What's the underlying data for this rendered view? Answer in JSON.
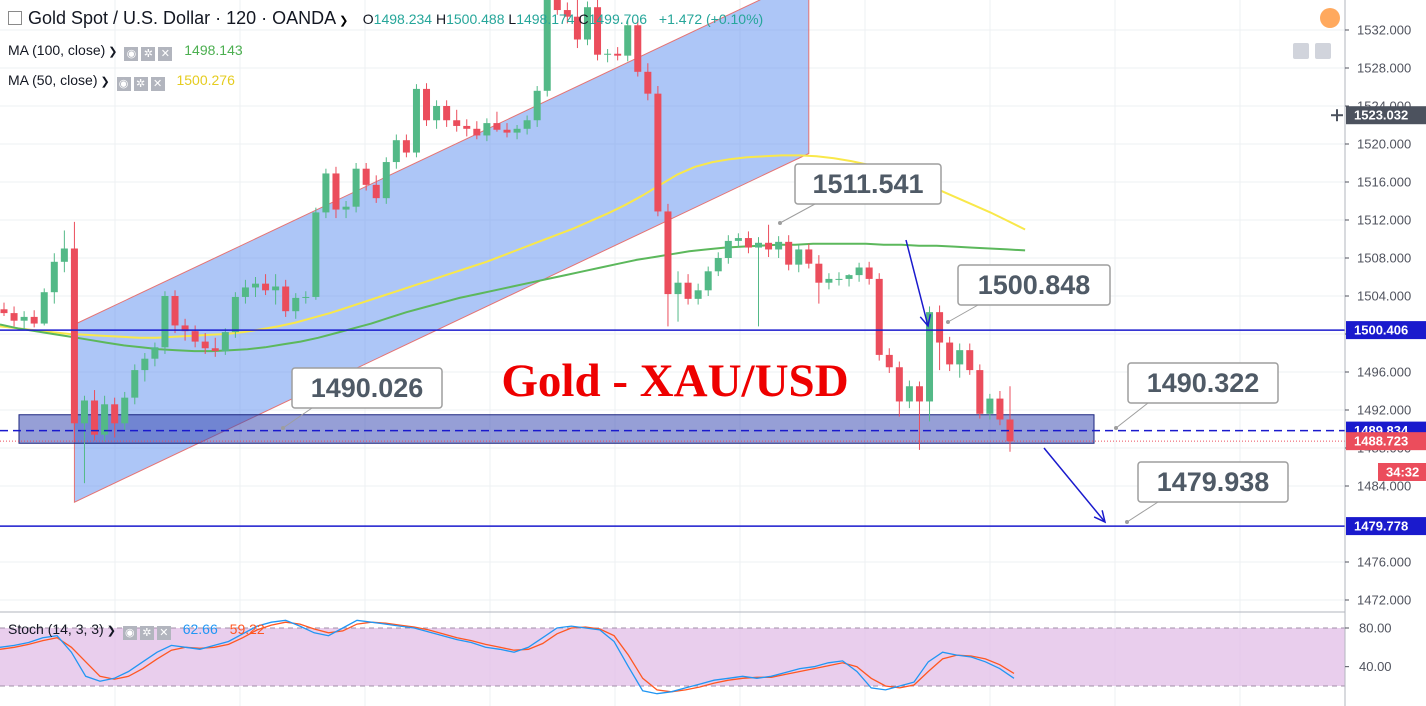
{
  "header": {
    "symbol": "Gold Spot / U.S. Dollar · 120 · OANDA",
    "o_label": "O",
    "o_value": "1498.234",
    "h_label": "H",
    "h_value": "1500.488",
    "l_label": "L",
    "l_value": "1498.174",
    "c_label": "C",
    "c_value": "1499.706",
    "change": "+1.472 (+0.10%)"
  },
  "studies": {
    "ma100": {
      "label": "MA (100, close)",
      "value": "1498.143",
      "color": "#4caf50"
    },
    "ma50": {
      "label": "MA (50, close)",
      "value": "1500.276",
      "color": "#ffeb3b"
    },
    "stoch": {
      "label": "Stoch (14, 3, 3)",
      "k_value": "62.66",
      "d_value": "59.22",
      "k_color": "#2196f3",
      "d_color": "#ff5722"
    }
  },
  "colors": {
    "up": "#53b987",
    "down": "#eb4d5c",
    "channel": "#5b8def",
    "level": "#1a1acd",
    "zone": "#3f51b5",
    "title": "#ee0000"
  },
  "chart_data": {
    "type": "candlestick",
    "title": "Gold - XAU/USD",
    "ylim": [
      1470.0,
      1536.0
    ],
    "y_ticks": [
      "1532.000",
      "1528.000",
      "1524.000",
      "1520.000",
      "1516.000",
      "1512.000",
      "1508.000",
      "1504.000",
      "1500.000",
      "1496.000",
      "1492.000",
      "1488.000",
      "1484.000",
      "1476.000",
      "1472.000"
    ],
    "price_tags": [
      {
        "text": "1523.032",
        "price": 1523.03,
        "kind": "crosshair"
      },
      {
        "text": "1500.406",
        "price": 1500.41,
        "kind": "level"
      },
      {
        "text": "1489.834",
        "price": 1489.83,
        "kind": "level"
      },
      {
        "text": "1488.723",
        "price": 1488.72,
        "kind": "last"
      },
      {
        "text": "34:32",
        "kind": "timer"
      },
      {
        "text": "1479.778",
        "price": 1479.78,
        "kind": "level"
      }
    ],
    "callouts": [
      "1511.541",
      "1500.848",
      "1490.026",
      "1490.322",
      "1479.938"
    ],
    "horizontal_levels": [
      1500.41,
      1479.78
    ],
    "zone": {
      "low": 1488.5,
      "high": 1491.5,
      "dashed": 1489.83
    },
    "candles": [
      {
        "o": 1502.6,
        "h": 1503.3,
        "l": 1501.9,
        "c": 1502.2
      },
      {
        "o": 1502.2,
        "h": 1502.9,
        "l": 1500.8,
        "c": 1501.4
      },
      {
        "o": 1501.4,
        "h": 1502.4,
        "l": 1500.4,
        "c": 1501.8
      },
      {
        "o": 1501.8,
        "h": 1502.5,
        "l": 1500.7,
        "c": 1501.1
      },
      {
        "o": 1501.1,
        "h": 1504.8,
        "l": 1500.9,
        "c": 1504.4
      },
      {
        "o": 1504.4,
        "h": 1508.5,
        "l": 1503.2,
        "c": 1507.6
      },
      {
        "o": 1507.6,
        "h": 1510.9,
        "l": 1506.5,
        "c": 1509.0
      },
      {
        "o": 1509.0,
        "h": 1511.8,
        "l": 1488.6,
        "c": 1490.6
      },
      {
        "o": 1490.6,
        "h": 1493.5,
        "l": 1484.3,
        "c": 1493.0
      },
      {
        "o": 1493.0,
        "h": 1494.1,
        "l": 1488.8,
        "c": 1489.4
      },
      {
        "o": 1489.4,
        "h": 1493.5,
        "l": 1488.7,
        "c": 1492.6
      },
      {
        "o": 1492.6,
        "h": 1493.3,
        "l": 1489.1,
        "c": 1490.6
      },
      {
        "o": 1490.6,
        "h": 1493.9,
        "l": 1489.9,
        "c": 1493.3
      },
      {
        "o": 1493.3,
        "h": 1496.8,
        "l": 1492.6,
        "c": 1496.2
      },
      {
        "o": 1496.2,
        "h": 1498.0,
        "l": 1495.0,
        "c": 1497.4
      },
      {
        "o": 1497.4,
        "h": 1499.1,
        "l": 1496.6,
        "c": 1498.6
      },
      {
        "o": 1498.6,
        "h": 1504.5,
        "l": 1497.9,
        "c": 1504.0
      },
      {
        "o": 1504.0,
        "h": 1504.6,
        "l": 1500.1,
        "c": 1500.9
      },
      {
        "o": 1500.9,
        "h": 1501.6,
        "l": 1499.3,
        "c": 1500.3
      },
      {
        "o": 1500.3,
        "h": 1500.9,
        "l": 1498.6,
        "c": 1499.2
      },
      {
        "o": 1499.2,
        "h": 1500.1,
        "l": 1497.9,
        "c": 1498.5
      },
      {
        "o": 1498.5,
        "h": 1499.6,
        "l": 1497.6,
        "c": 1498.2
      },
      {
        "o": 1498.2,
        "h": 1500.6,
        "l": 1497.8,
        "c": 1500.2
      },
      {
        "o": 1500.2,
        "h": 1504.4,
        "l": 1499.6,
        "c": 1503.9
      },
      {
        "o": 1503.9,
        "h": 1505.7,
        "l": 1503.2,
        "c": 1504.9
      },
      {
        "o": 1504.9,
        "h": 1506.0,
        "l": 1503.9,
        "c": 1505.3
      },
      {
        "o": 1505.3,
        "h": 1506.3,
        "l": 1504.1,
        "c": 1504.6
      },
      {
        "o": 1504.6,
        "h": 1506.3,
        "l": 1503.1,
        "c": 1505.0
      },
      {
        "o": 1505.0,
        "h": 1505.7,
        "l": 1501.8,
        "c": 1502.4
      },
      {
        "o": 1502.4,
        "h": 1504.3,
        "l": 1501.6,
        "c": 1503.8
      },
      {
        "o": 1503.8,
        "h": 1504.5,
        "l": 1503.2,
        "c": 1503.9
      },
      {
        "o": 1503.9,
        "h": 1513.3,
        "l": 1503.6,
        "c": 1512.8
      },
      {
        "o": 1512.8,
        "h": 1517.4,
        "l": 1512.2,
        "c": 1516.9
      },
      {
        "o": 1516.9,
        "h": 1517.6,
        "l": 1512.2,
        "c": 1513.1
      },
      {
        "o": 1513.1,
        "h": 1514.0,
        "l": 1512.2,
        "c": 1513.4
      },
      {
        "o": 1513.4,
        "h": 1518.0,
        "l": 1512.8,
        "c": 1517.4
      },
      {
        "o": 1517.4,
        "h": 1518.0,
        "l": 1515.1,
        "c": 1515.7
      },
      {
        "o": 1515.7,
        "h": 1516.7,
        "l": 1513.8,
        "c": 1514.3
      },
      {
        "o": 1514.3,
        "h": 1518.6,
        "l": 1513.7,
        "c": 1518.1
      },
      {
        "o": 1518.1,
        "h": 1521.0,
        "l": 1517.4,
        "c": 1520.4
      },
      {
        "o": 1520.4,
        "h": 1521.0,
        "l": 1518.6,
        "c": 1519.1
      },
      {
        "o": 1519.1,
        "h": 1526.3,
        "l": 1518.6,
        "c": 1525.8
      },
      {
        "o": 1525.8,
        "h": 1526.4,
        "l": 1521.9,
        "c": 1522.5
      },
      {
        "o": 1522.5,
        "h": 1524.6,
        "l": 1521.6,
        "c": 1524.0
      },
      {
        "o": 1524.0,
        "h": 1524.6,
        "l": 1521.8,
        "c": 1522.5
      },
      {
        "o": 1522.5,
        "h": 1523.6,
        "l": 1521.3,
        "c": 1521.9
      },
      {
        "o": 1521.9,
        "h": 1522.6,
        "l": 1520.8,
        "c": 1521.6
      },
      {
        "o": 1521.6,
        "h": 1522.4,
        "l": 1520.5,
        "c": 1520.9
      },
      {
        "o": 1520.9,
        "h": 1522.7,
        "l": 1520.3,
        "c": 1522.2
      },
      {
        "o": 1522.2,
        "h": 1523.4,
        "l": 1521.3,
        "c": 1521.5
      },
      {
        "o": 1521.5,
        "h": 1522.2,
        "l": 1520.7,
        "c": 1521.2
      },
      {
        "o": 1521.2,
        "h": 1522.0,
        "l": 1520.5,
        "c": 1521.6
      },
      {
        "o": 1521.6,
        "h": 1523.0,
        "l": 1521.0,
        "c": 1522.5
      },
      {
        "o": 1522.5,
        "h": 1526.1,
        "l": 1521.8,
        "c": 1525.6
      },
      {
        "o": 1525.6,
        "h": 1536.0,
        "l": 1525.0,
        "c": 1535.4
      },
      {
        "o": 1535.4,
        "h": 1536.0,
        "l": 1533.6,
        "c": 1534.1
      },
      {
        "o": 1534.1,
        "h": 1534.9,
        "l": 1532.7,
        "c": 1533.4
      },
      {
        "o": 1533.4,
        "h": 1535.6,
        "l": 1530.1,
        "c": 1531.0
      },
      {
        "o": 1531.0,
        "h": 1535.0,
        "l": 1530.4,
        "c": 1534.4
      },
      {
        "o": 1534.4,
        "h": 1535.3,
        "l": 1528.8,
        "c": 1529.4
      },
      {
        "o": 1529.4,
        "h": 1530.0,
        "l": 1528.6,
        "c": 1529.5
      },
      {
        "o": 1529.5,
        "h": 1530.2,
        "l": 1528.8,
        "c": 1529.3
      },
      {
        "o": 1529.3,
        "h": 1533.1,
        "l": 1528.7,
        "c": 1532.5
      },
      {
        "o": 1532.5,
        "h": 1533.1,
        "l": 1527.1,
        "c": 1527.6
      },
      {
        "o": 1527.6,
        "h": 1528.5,
        "l": 1524.6,
        "c": 1525.3
      },
      {
        "o": 1525.3,
        "h": 1526.1,
        "l": 1512.4,
        "c": 1512.9
      },
      {
        "o": 1512.9,
        "h": 1513.7,
        "l": 1500.8,
        "c": 1504.2
      },
      {
        "o": 1504.2,
        "h": 1506.6,
        "l": 1501.3,
        "c": 1505.4
      },
      {
        "o": 1505.4,
        "h": 1506.3,
        "l": 1503.1,
        "c": 1503.7
      },
      {
        "o": 1503.7,
        "h": 1505.3,
        "l": 1503.1,
        "c": 1504.6
      },
      {
        "o": 1504.6,
        "h": 1507.1,
        "l": 1504.0,
        "c": 1506.6
      },
      {
        "o": 1506.6,
        "h": 1508.6,
        "l": 1506.1,
        "c": 1508.0
      },
      {
        "o": 1508.0,
        "h": 1510.4,
        "l": 1507.4,
        "c": 1509.8
      },
      {
        "o": 1509.8,
        "h": 1510.6,
        "l": 1509.1,
        "c": 1510.1
      },
      {
        "o": 1510.1,
        "h": 1510.8,
        "l": 1508.5,
        "c": 1509.1
      },
      {
        "o": 1509.1,
        "h": 1510.2,
        "l": 1500.8,
        "c": 1509.6
      },
      {
        "o": 1509.6,
        "h": 1511.5,
        "l": 1508.1,
        "c": 1508.9
      },
      {
        "o": 1508.9,
        "h": 1510.3,
        "l": 1508.0,
        "c": 1509.7
      },
      {
        "o": 1509.7,
        "h": 1510.4,
        "l": 1506.7,
        "c": 1507.3
      },
      {
        "o": 1507.3,
        "h": 1509.4,
        "l": 1506.5,
        "c": 1508.9
      },
      {
        "o": 1508.9,
        "h": 1509.5,
        "l": 1506.9,
        "c": 1507.4
      },
      {
        "o": 1507.4,
        "h": 1508.3,
        "l": 1503.2,
        "c": 1505.4
      },
      {
        "o": 1505.4,
        "h": 1506.4,
        "l": 1504.7,
        "c": 1505.8
      },
      {
        "o": 1505.8,
        "h": 1506.5,
        "l": 1505.1,
        "c": 1505.8
      },
      {
        "o": 1505.8,
        "h": 1506.3,
        "l": 1505.0,
        "c": 1506.2
      },
      {
        "o": 1506.2,
        "h": 1507.5,
        "l": 1505.5,
        "c": 1507.0
      },
      {
        "o": 1507.0,
        "h": 1507.6,
        "l": 1505.2,
        "c": 1505.8
      },
      {
        "o": 1505.8,
        "h": 1506.4,
        "l": 1497.2,
        "c": 1497.8
      },
      {
        "o": 1497.8,
        "h": 1498.5,
        "l": 1495.9,
        "c": 1496.5
      },
      {
        "o": 1496.5,
        "h": 1497.1,
        "l": 1491.3,
        "c": 1492.9
      },
      {
        "o": 1492.9,
        "h": 1495.1,
        "l": 1492.2,
        "c": 1494.5
      },
      {
        "o": 1494.5,
        "h": 1495.0,
        "l": 1487.8,
        "c": 1492.9
      },
      {
        "o": 1492.9,
        "h": 1502.9,
        "l": 1490.8,
        "c": 1502.3
      },
      {
        "o": 1502.3,
        "h": 1503.0,
        "l": 1496.2,
        "c": 1499.1
      },
      {
        "o": 1499.1,
        "h": 1499.7,
        "l": 1496.1,
        "c": 1496.8
      },
      {
        "o": 1496.8,
        "h": 1499.0,
        "l": 1495.4,
        "c": 1498.3
      },
      {
        "o": 1498.3,
        "h": 1499.0,
        "l": 1495.7,
        "c": 1496.2
      },
      {
        "o": 1496.2,
        "h": 1496.8,
        "l": 1491.1,
        "c": 1491.6
      },
      {
        "o": 1491.6,
        "h": 1493.7,
        "l": 1491.0,
        "c": 1493.2
      },
      {
        "o": 1493.2,
        "h": 1494.0,
        "l": 1490.4,
        "c": 1491.0
      },
      {
        "o": 1491.0,
        "h": 1494.5,
        "l": 1487.6,
        "c": 1488.7
      }
    ],
    "ma50": [
      1500.8,
      1500.6,
      1500.4,
      1500.2,
      1500.0,
      1499.9,
      1499.8,
      1499.7,
      1499.6,
      1499.6,
      1499.7,
      1499.8,
      1499.9,
      1500.0,
      1500.2,
      1500.5,
      1500.8,
      1501.2,
      1501.7,
      1502.2,
      1502.8,
      1503.4,
      1504.0,
      1504.6,
      1505.2,
      1505.8,
      1506.4,
      1507.0,
      1507.6,
      1508.3,
      1509.0,
      1509.7,
      1510.4,
      1511.1,
      1511.9,
      1512.7,
      1513.6,
      1514.6,
      1515.7,
      1516.8,
      1517.6,
      1518.1,
      1518.4,
      1518.6,
      1518.7,
      1518.8,
      1518.8,
      1518.7,
      1518.5,
      1518.2,
      1517.8,
      1517.3,
      1516.7,
      1516.0,
      1515.2,
      1514.4,
      1513.6,
      1512.8,
      1511.9,
      1511.0
    ],
    "ma50_start": 14,
    "ma100": [
      1501.0,
      1500.6,
      1500.3,
      1500.0,
      1499.7,
      1499.4,
      1499.1,
      1498.8,
      1498.6,
      1498.4,
      1498.3,
      1498.2,
      1498.2,
      1498.3,
      1498.4,
      1498.6,
      1498.9,
      1499.2,
      1499.6,
      1500.1,
      1500.6,
      1501.1,
      1501.7,
      1502.3,
      1502.8,
      1503.3,
      1503.8,
      1504.2,
      1504.6,
      1505.0,
      1505.4,
      1505.8,
      1506.2,
      1506.6,
      1507.0,
      1507.4,
      1507.8,
      1508.1,
      1508.4,
      1508.7,
      1508.9,
      1509.1,
      1509.2,
      1509.3,
      1509.4,
      1509.4,
      1509.5,
      1509.5,
      1509.5,
      1509.5,
      1509.4,
      1509.4,
      1509.3,
      1509.3,
      1509.2,
      1509.1,
      1509.0,
      1508.9,
      1508.8
    ],
    "ma100_start": 44,
    "stoch_ylim": [
      0,
      100
    ],
    "stoch_ticks": [
      "80.00",
      "40.00"
    ],
    "stoch_bands": [
      80,
      20
    ],
    "stoch_k": [
      60,
      62,
      65,
      70,
      72,
      55,
      30,
      25,
      28,
      35,
      45,
      55,
      62,
      60,
      58,
      62,
      66,
      74,
      82,
      86,
      88,
      82,
      75,
      72,
      80,
      88,
      86,
      84,
      82,
      80,
      76,
      72,
      68,
      65,
      60,
      58,
      55,
      60,
      70,
      80,
      82,
      80,
      78,
      66,
      40,
      15,
      12,
      14,
      18,
      22,
      26,
      28,
      30,
      28,
      30,
      34,
      38,
      40,
      44,
      46,
      35,
      18,
      16,
      20,
      24,
      45,
      55,
      52,
      50,
      45,
      38,
      28
    ],
    "stoch_d": [
      58,
      60,
      63,
      67,
      70,
      60,
      45,
      30,
      27,
      30,
      38,
      48,
      57,
      60,
      59,
      60,
      63,
      70,
      78,
      83,
      86,
      84,
      79,
      75,
      77,
      84,
      86,
      85,
      83,
      81,
      78,
      74,
      70,
      67,
      63,
      60,
      57,
      58,
      64,
      74,
      80,
      81,
      79,
      72,
      52,
      28,
      16,
      14,
      16,
      19,
      23,
      26,
      28,
      29,
      29,
      32,
      35,
      38,
      41,
      44,
      40,
      28,
      20,
      18,
      21,
      35,
      48,
      52,
      51,
      48,
      42,
      33
    ]
  },
  "annotations": {
    "title": "Gold - XAU/USD"
  }
}
